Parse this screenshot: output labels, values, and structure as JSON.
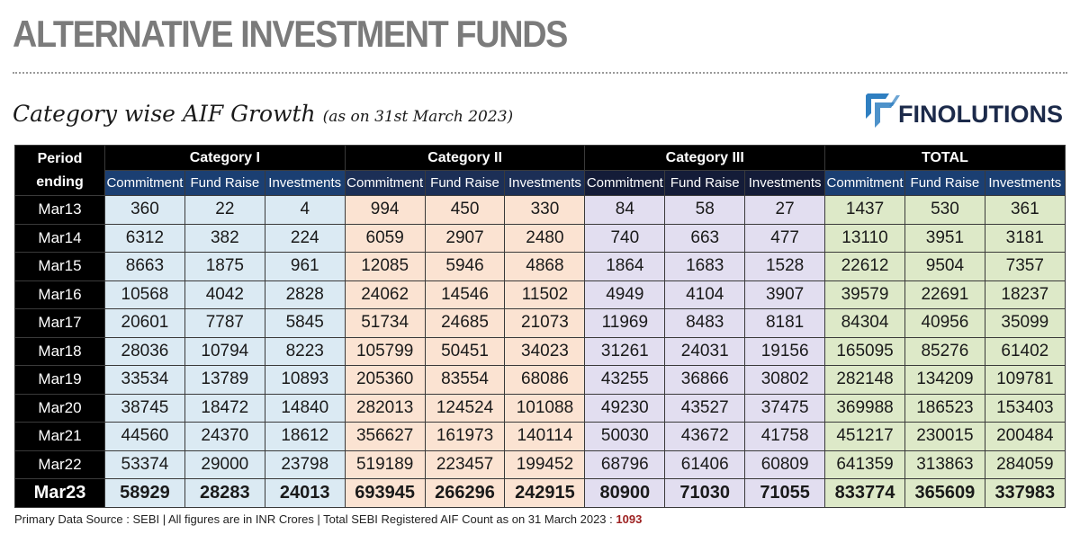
{
  "page_title": "ALTERNATIVE INVESTMENT FUNDS",
  "subtitle": "Category wise AIF Growth",
  "subtitle_note": "(as on 31st March 2023)",
  "logo": {
    "text": "FINOLUTIONS",
    "icon": "finolutions-logo-icon",
    "colors": [
      "#2f7fc1",
      "#1c2a4a"
    ]
  },
  "table": {
    "period_header": "Period\nending",
    "groups": [
      "Category I",
      "Category II",
      "Category III",
      "TOTAL"
    ],
    "subheaders": [
      "Commitment",
      "Fund Raise",
      "Investments"
    ],
    "rows": [
      {
        "period": "Mar13",
        "values": [
          "360",
          "22",
          "4",
          "994",
          "450",
          "330",
          "84",
          "58",
          "27",
          "1437",
          "530",
          "361"
        ]
      },
      {
        "period": "Mar14",
        "values": [
          "6312",
          "382",
          "224",
          "6059",
          "2907",
          "2480",
          "740",
          "663",
          "477",
          "13110",
          "3951",
          "3181"
        ]
      },
      {
        "period": "Mar15",
        "values": [
          "8663",
          "1875",
          "961",
          "12085",
          "5946",
          "4868",
          "1864",
          "1683",
          "1528",
          "22612",
          "9504",
          "7357"
        ]
      },
      {
        "period": "Mar16",
        "values": [
          "10568",
          "4042",
          "2828",
          "24062",
          "14546",
          "11502",
          "4949",
          "4104",
          "3907",
          "39579",
          "22691",
          "18237"
        ]
      },
      {
        "period": "Mar17",
        "values": [
          "20601",
          "7787",
          "5845",
          "51734",
          "24685",
          "21073",
          "11969",
          "8483",
          "8181",
          "84304",
          "40956",
          "35099"
        ]
      },
      {
        "period": "Mar18",
        "values": [
          "28036",
          "10794",
          "8223",
          "105799",
          "50451",
          "34023",
          "31261",
          "24031",
          "19156",
          "165095",
          "85276",
          "61402"
        ]
      },
      {
        "period": "Mar19",
        "values": [
          "33534",
          "13789",
          "10893",
          "205360",
          "83554",
          "68086",
          "43255",
          "36866",
          "30802",
          "282148",
          "134209",
          "109781"
        ]
      },
      {
        "period": "Mar20",
        "values": [
          "38745",
          "18472",
          "14840",
          "282013",
          "124524",
          "101088",
          "49230",
          "43527",
          "37475",
          "369988",
          "186523",
          "153403"
        ]
      },
      {
        "period": "Mar21",
        "values": [
          "44560",
          "24370",
          "18612",
          "356627",
          "161973",
          "140114",
          "50030",
          "43672",
          "41758",
          "451217",
          "230015",
          "200484"
        ]
      },
      {
        "period": "Mar22",
        "values": [
          "53374",
          "29000",
          "23798",
          "519189",
          "223457",
          "199452",
          "68796",
          "61406",
          "60809",
          "641359",
          "313863",
          "284059"
        ]
      },
      {
        "period": "Mar23",
        "values": [
          "58929",
          "28283",
          "24013",
          "693945",
          "266296",
          "242915",
          "80900",
          "71030",
          "71055",
          "833774",
          "365609",
          "337983"
        ]
      }
    ],
    "colors": {
      "cat1": "#dbeaf3",
      "cat2": "#fbe3d2",
      "cat3": "#e2def0",
      "total": "#dde9c8",
      "header": "#000000"
    }
  },
  "footer": {
    "text": "Primary Data Source : SEBI  |  All figures are in INR Crores  |  Total SEBI Registered AIF Count as on 31 March 2023 : ",
    "count": "1093",
    "count_color": "#9c1f1f"
  }
}
